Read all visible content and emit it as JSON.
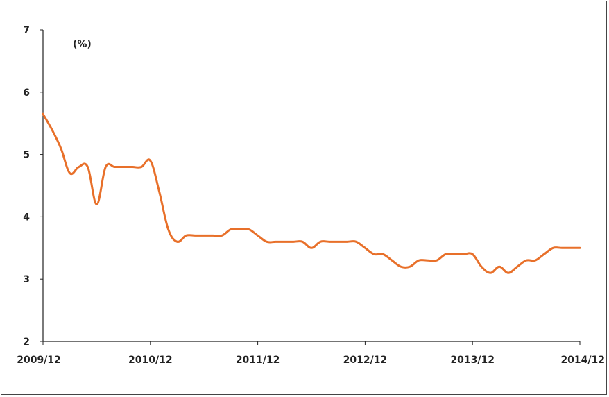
{
  "chart_data": {
    "type": "line",
    "title": "",
    "xlabel": "",
    "ylabel": "",
    "unit_label": "(%)",
    "ylim": [
      2,
      7
    ],
    "y_ticks": [
      2,
      3,
      4,
      5,
      6,
      7
    ],
    "x_range": [
      "2009-12",
      "2014-12"
    ],
    "x_ticks": [
      "2009/12",
      "2010/12",
      "2011/12",
      "2012/12",
      "2013/12",
      "2014/12"
    ],
    "grid": false,
    "legend": "none",
    "line_color": "#E8702A",
    "series": [
      {
        "x": [
          "2009-12",
          "2010-01",
          "2010-02",
          "2010-03",
          "2010-04",
          "2010-05",
          "2010-06",
          "2010-07",
          "2010-08",
          "2010-09",
          "2010-10",
          "2010-11",
          "2010-12",
          "2011-01",
          "2011-02",
          "2011-03",
          "2011-04",
          "2011-05",
          "2011-06",
          "2011-07",
          "2011-08",
          "2011-09",
          "2011-10",
          "2011-11",
          "2011-12",
          "2012-01",
          "2012-02",
          "2012-03",
          "2012-04",
          "2012-05",
          "2012-06",
          "2012-07",
          "2012-08",
          "2012-09",
          "2012-10",
          "2012-11",
          "2012-12",
          "2013-01",
          "2013-02",
          "2013-03",
          "2013-04",
          "2013-05",
          "2013-06",
          "2013-07",
          "2013-08",
          "2013-09",
          "2013-10",
          "2013-11",
          "2013-12",
          "2014-01",
          "2014-02",
          "2014-03",
          "2014-04",
          "2014-05",
          "2014-06",
          "2014-07",
          "2014-08",
          "2014-09",
          "2014-10",
          "2014-11",
          "2014-12"
        ],
        "values": [
          5.65,
          5.4,
          5.1,
          4.7,
          4.8,
          4.8,
          4.2,
          4.8,
          4.8,
          4.8,
          4.8,
          4.8,
          4.9,
          4.4,
          3.8,
          3.6,
          3.7,
          3.7,
          3.7,
          3.7,
          3.7,
          3.8,
          3.8,
          3.8,
          3.7,
          3.6,
          3.6,
          3.6,
          3.6,
          3.6,
          3.5,
          3.6,
          3.6,
          3.6,
          3.6,
          3.6,
          3.5,
          3.4,
          3.4,
          3.3,
          3.2,
          3.2,
          3.3,
          3.3,
          3.3,
          3.4,
          3.4,
          3.4,
          3.4,
          3.2,
          3.1,
          3.2,
          3.1,
          3.2,
          3.3,
          3.3,
          3.4,
          3.5,
          3.5,
          3.5,
          3.5
        ]
      }
    ]
  }
}
